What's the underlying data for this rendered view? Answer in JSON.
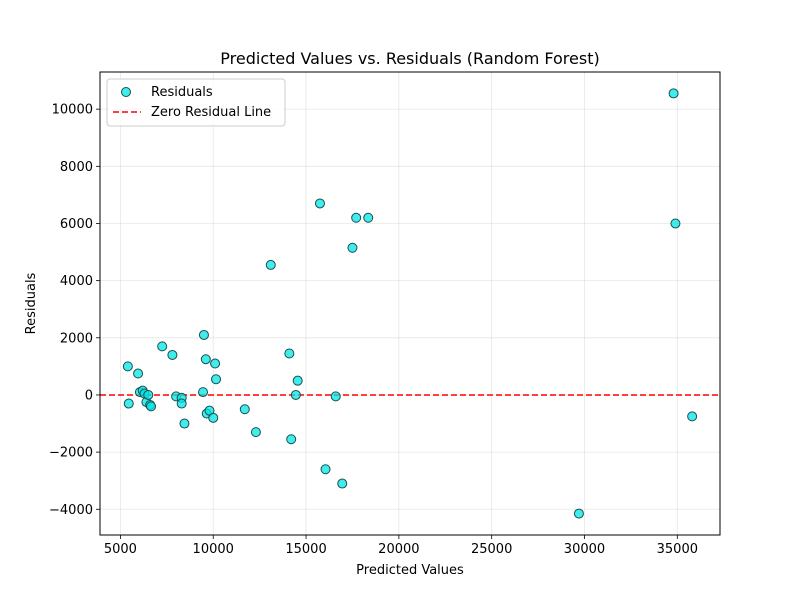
{
  "chart_data": {
    "type": "scatter",
    "title": "Predicted Values vs. Residuals (Random Forest)",
    "xlabel": "Predicted Values",
    "ylabel": "Residuals",
    "xlim": [
      3900,
      37300
    ],
    "ylim": [
      -4900,
      11300
    ],
    "xticks": [
      5000,
      10000,
      15000,
      20000,
      25000,
      30000,
      35000
    ],
    "xtick_labels": [
      "5000",
      "10000",
      "15000",
      "20000",
      "25000",
      "30000",
      "35000"
    ],
    "yticks": [
      -4000,
      -2000,
      0,
      2000,
      4000,
      6000,
      8000,
      10000
    ],
    "ytick_labels": [
      "−4000",
      "−2000",
      "0",
      "2000",
      "4000",
      "6000",
      "8000",
      "10000"
    ],
    "grid": true,
    "legend_position": "top-left",
    "series": [
      {
        "name": "Residuals",
        "color": "#00E5E5",
        "edge_color": "#1b4f4f",
        "x": [
          5400,
          5450,
          5950,
          6050,
          6200,
          6300,
          6400,
          6500,
          6600,
          6650,
          7250,
          7800,
          8000,
          8300,
          8300,
          8450,
          9450,
          9500,
          9600,
          9650,
          9800,
          10000,
          10100,
          10150,
          11700,
          12300,
          13100,
          14100,
          14200,
          14450,
          14550,
          15750,
          16050,
          16600,
          16950,
          17500,
          17700,
          18350,
          29700,
          34800,
          34900,
          35800
        ],
        "y": [
          1000,
          -300,
          750,
          100,
          150,
          50,
          -250,
          0,
          -350,
          -400,
          1700,
          1400,
          -50,
          -100,
          -300,
          -1000,
          100,
          2100,
          1250,
          -650,
          -550,
          -800,
          1100,
          550,
          -500,
          -1300,
          4550,
          1450,
          -1550,
          0,
          500,
          6700,
          -2600,
          -50,
          -3100,
          5150,
          6200,
          6200,
          -4150,
          10550,
          6000,
          -750
        ]
      },
      {
        "name": "Zero Residual Line",
        "color": "#FF0000",
        "style": "dashed",
        "y_constant": 0
      }
    ]
  }
}
